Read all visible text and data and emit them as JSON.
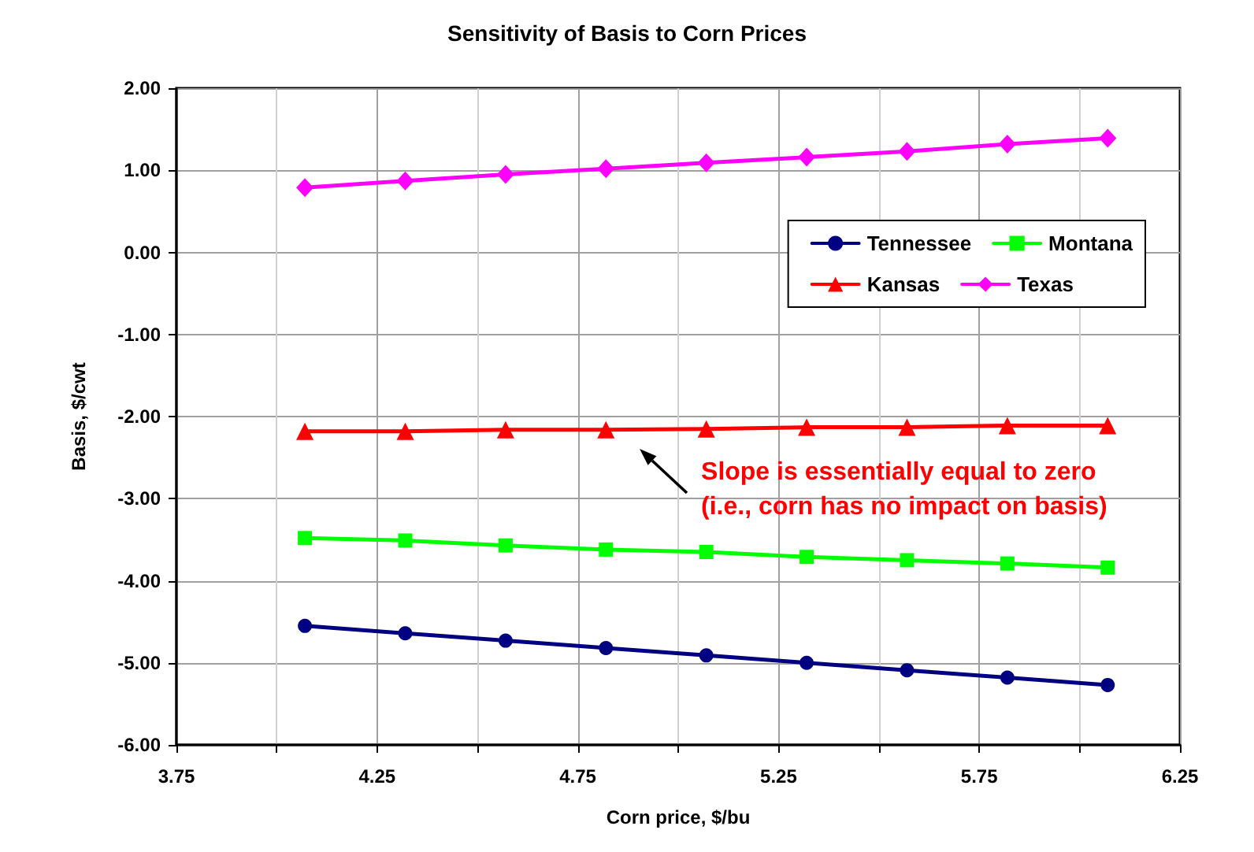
{
  "chart_data": {
    "type": "line",
    "title": "Sensitivity of Basis to Corn Prices",
    "xlabel": "Corn price, $/bu",
    "ylabel": "Basis, $/cwt",
    "x": [
      4.07,
      4.32,
      4.57,
      4.82,
      5.07,
      5.32,
      5.57,
      5.82,
      6.07
    ],
    "series": [
      {
        "name": "Tennessee",
        "color": "#000080",
        "marker": "circle",
        "values": [
          -4.55,
          -4.64,
          -4.73,
          -4.82,
          -4.91,
          -5.0,
          -5.09,
          -5.18,
          -5.27
        ]
      },
      {
        "name": "Montana",
        "color": "#00ff00",
        "marker": "square",
        "values": [
          -3.48,
          -3.51,
          -3.57,
          -3.62,
          -3.65,
          -3.71,
          -3.75,
          -3.79,
          -3.84
        ]
      },
      {
        "name": "Kansas",
        "color": "#ff0000",
        "marker": "triangle",
        "values": [
          -2.18,
          -2.18,
          -2.16,
          -2.16,
          -2.15,
          -2.13,
          -2.13,
          -2.11,
          -2.11
        ]
      },
      {
        "name": "Texas",
        "color": "#ff00ff",
        "marker": "diamond",
        "values": [
          0.79,
          0.87,
          0.95,
          1.02,
          1.09,
          1.16,
          1.23,
          1.32,
          1.39
        ]
      }
    ],
    "xlim": [
      3.75,
      6.25
    ],
    "xticks": [
      3.75,
      {
        "value": 4.0,
        "label": null
      },
      4.25,
      {
        "value": 4.5,
        "label": null
      },
      4.75,
      {
        "value": 5.0,
        "label": null
      },
      5.25,
      {
        "value": 5.5,
        "label": null
      },
      5.75,
      {
        "value": 6.0,
        "label": null
      },
      6.25
    ],
    "ylim": [
      -6,
      2
    ],
    "yticks": [
      {
        "value": -6,
        "label": "-6.00"
      },
      {
        "value": -5,
        "label": "-5.00"
      },
      {
        "value": -4,
        "label": "-4.00"
      },
      {
        "value": -3,
        "label": "-3.00"
      },
      {
        "value": -2,
        "label": "-2.00"
      },
      {
        "value": -1,
        "label": "-1.00"
      },
      {
        "value": 0,
        "label": "0.00"
      },
      {
        "value": 1,
        "label": "1.00"
      },
      {
        "value": 2,
        "label": "2.00"
      }
    ],
    "grid": true,
    "legend": "top right",
    "line_style": "solid",
    "annotations": [
      {
        "text": "Slope is essentially equal to zero\n(i.e., corn has no impact on basis)",
        "x": 4.9,
        "y": -2.16
      }
    ]
  }
}
